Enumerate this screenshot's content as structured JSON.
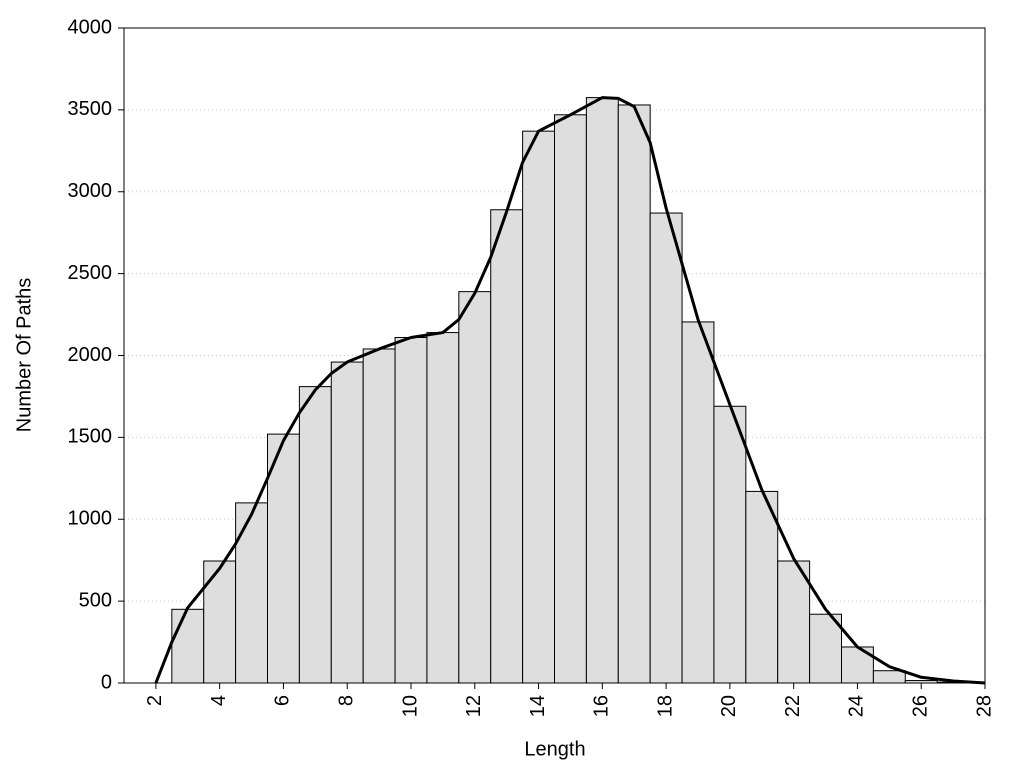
{
  "chart_data": {
    "type": "histogram",
    "x_label": "Length",
    "y_label": "Number Of Paths",
    "bins": [
      2.5,
      3.5,
      4.5,
      5.5,
      6.5,
      7.5,
      8.5,
      9.5,
      10.5,
      11.5,
      12.5,
      13.5,
      14.5,
      15.5,
      16.5,
      17.5,
      18.5,
      19.5,
      20.5,
      21.5,
      22.5,
      23.5,
      24.5,
      25.5,
      26.5,
      27.5
    ],
    "values": [
      450,
      745,
      1100,
      1520,
      1810,
      1960,
      2040,
      2110,
      2140,
      2390,
      2890,
      3370,
      3470,
      3575,
      3530,
      2870,
      2205,
      1690,
      1170,
      745,
      420,
      220,
      75,
      15,
      5
    ],
    "color": "#dedede",
    "curve": {
      "color": "#000000",
      "x": [
        2,
        2.5,
        3,
        3.5,
        4,
        4.5,
        5,
        5.5,
        6,
        6.5,
        7,
        7.5,
        8,
        9,
        10,
        11,
        11.5,
        12,
        12.5,
        13,
        13.5,
        14,
        15,
        16,
        16.5,
        17,
        17.5,
        18,
        19,
        20,
        21,
        22,
        23,
        24,
        25,
        26,
        27,
        28
      ],
      "values": [
        0,
        250,
        460,
        580,
        700,
        850,
        1030,
        1250,
        1480,
        1650,
        1790,
        1890,
        1960,
        2040,
        2110,
        2140,
        2220,
        2380,
        2600,
        2880,
        3180,
        3370,
        3470,
        3575,
        3570,
        3520,
        3300,
        2900,
        2220,
        1700,
        1180,
        760,
        450,
        220,
        100,
        35,
        12,
        0
      ]
    },
    "xlim": [
      1,
      28
    ],
    "ylim": [
      0,
      4000
    ],
    "xticks": [
      2,
      4,
      6,
      8,
      10,
      12,
      14,
      16,
      18,
      20,
      22,
      24,
      26,
      28
    ],
    "yticks": [
      0,
      500,
      1000,
      1500,
      2000,
      2500,
      3000,
      3500,
      4000
    ],
    "grid": true
  }
}
